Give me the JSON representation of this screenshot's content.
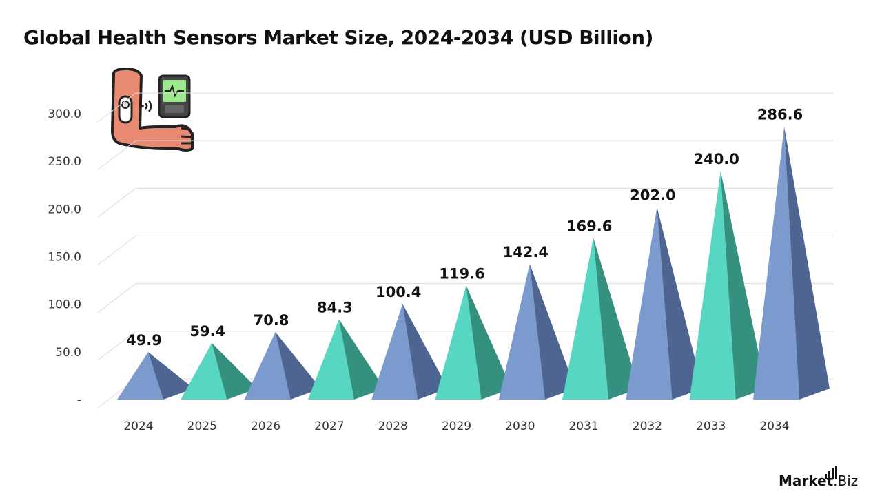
{
  "title": "Global Health Sensors Market Size, 2024-2034 (USD Billion)",
  "brand": {
    "bold": "Market",
    "light": ".Biz"
  },
  "icons": {
    "illustration": "arm-sensor-smartphone-icon",
    "logo": "bar-signal-icon"
  },
  "colors": {
    "blue": "#7b9acd",
    "blue_side": "#4d6590",
    "teal": "#57d6c2",
    "teal_side": "#36907f",
    "grid": "#dcdcdc"
  },
  "chart_data": {
    "type": "bar",
    "style": "3d-pyramid",
    "title": "Global Health Sensors Market Size, 2024-2034 (USD Billion)",
    "categories": [
      "2024",
      "2025",
      "2026",
      "2027",
      "2028",
      "2029",
      "2030",
      "2031",
      "2032",
      "2033",
      "2034"
    ],
    "values": [
      49.9,
      59.4,
      70.8,
      84.3,
      100.4,
      119.6,
      142.4,
      169.6,
      202.0,
      240.0,
      286.6
    ],
    "value_labels": [
      "49.9",
      "59.4",
      "70.8",
      "84.3",
      "100.4",
      "119.6",
      "142.4",
      "169.6",
      "202.0",
      "240.0",
      "286.6"
    ],
    "bar_colors": [
      "blue",
      "teal",
      "blue",
      "teal",
      "blue",
      "teal",
      "blue",
      "teal",
      "blue",
      "teal",
      "blue"
    ],
    "ylim": [
      0,
      300
    ],
    "yticks": [
      0,
      50,
      100,
      150,
      200,
      250,
      300
    ],
    "ytick_labels": [
      "-",
      "50.0",
      "100.0",
      "150.0",
      "200.0",
      "250.0",
      "300.0"
    ],
    "xlabel": "",
    "ylabel": "",
    "grid": true,
    "legend": "none"
  }
}
